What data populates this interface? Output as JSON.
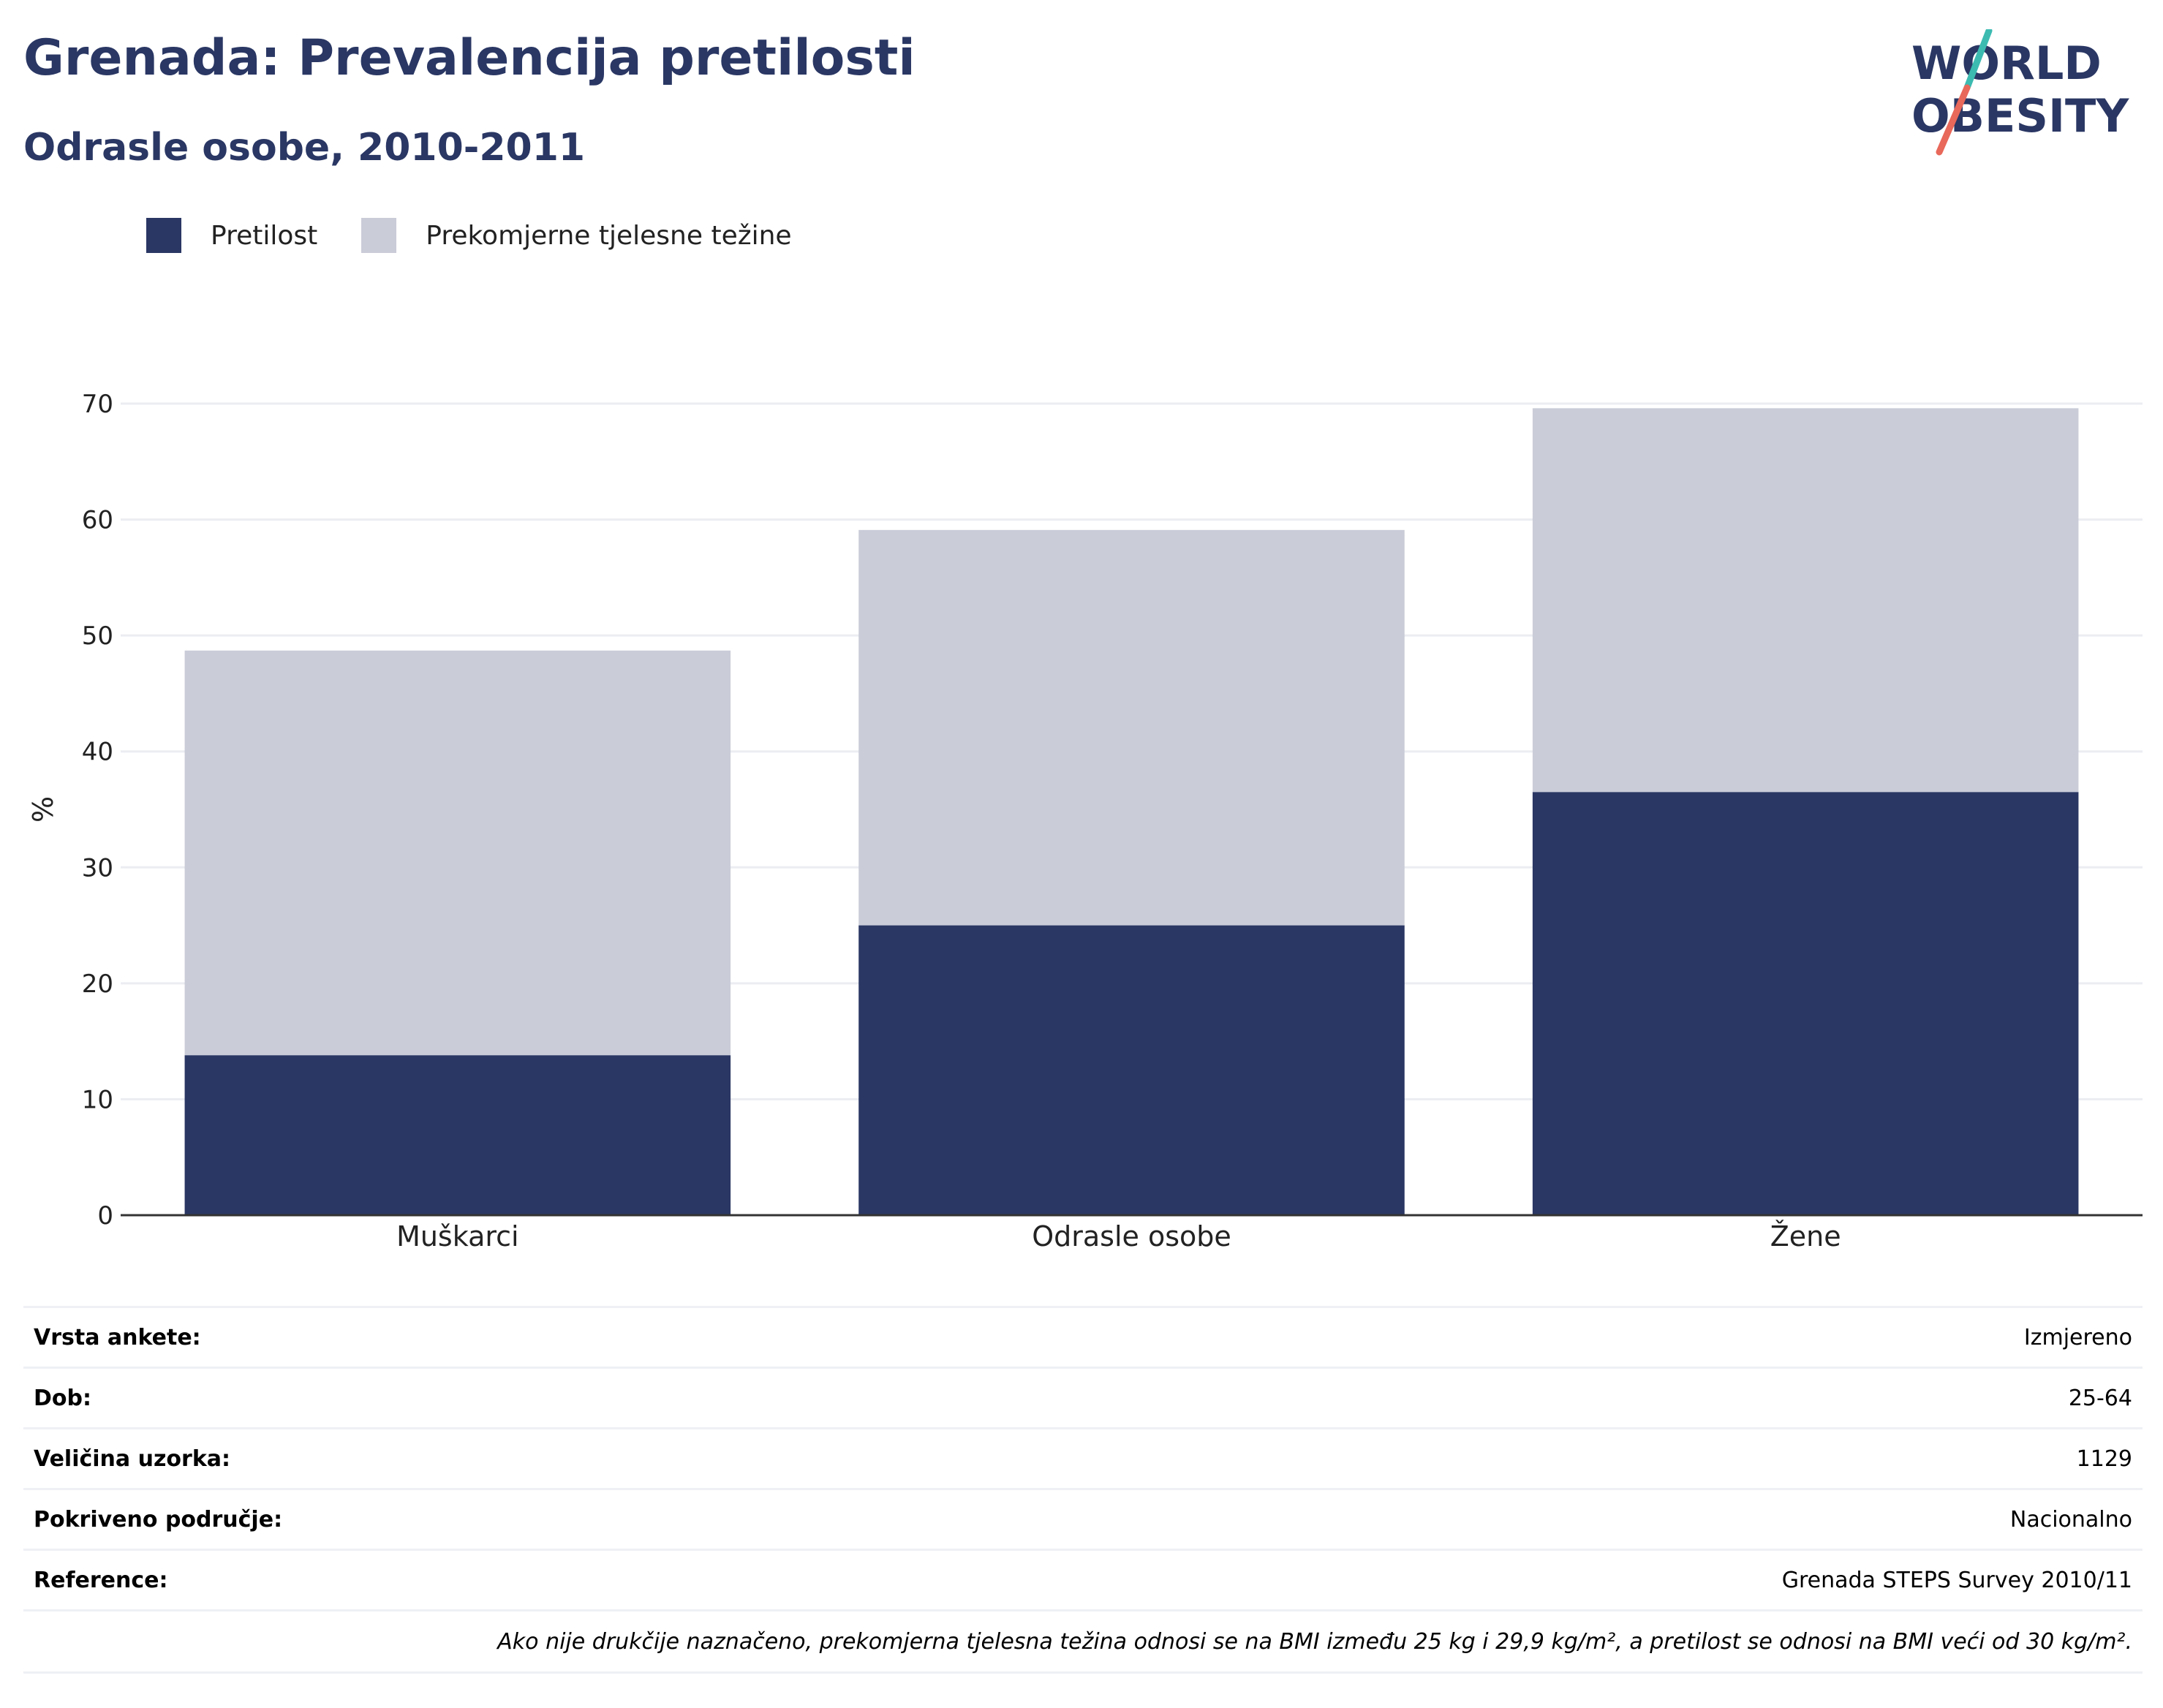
{
  "header": {
    "title": "Grenada: Prevalencija pretilosti",
    "subtitle": "Odrasle osobe, 2010-2011"
  },
  "logo": {
    "line1": "WORLD",
    "line2": "OBESITY",
    "accent_teal": "#3cbbb1",
    "accent_red": "#e8685a",
    "color": "#2a3764"
  },
  "legend": [
    {
      "label": "Pretilost",
      "color": "#2a3764"
    },
    {
      "label": "Prekomjerne tjelesne težine",
      "color": "#caccd8"
    }
  ],
  "chart_data": {
    "type": "bar",
    "stacked": true,
    "categories": [
      "Muškarci",
      "Odrasle osobe",
      "Žene"
    ],
    "series": [
      {
        "name": "Pretilost",
        "values": [
          13.8,
          25.0,
          36.5
        ],
        "color": "#2a3764"
      },
      {
        "name": "Prekomjerne tjelesne težine",
        "values": [
          34.9,
          34.1,
          33.1
        ],
        "color": "#caccd8"
      }
    ],
    "ylabel": "%",
    "ylim": [
      0,
      70
    ],
    "yticks": [
      "0",
      "10",
      "20",
      "30",
      "40",
      "50",
      "60",
      "70"
    ],
    "grid": true,
    "legend_position": "top-left"
  },
  "meta": {
    "rows": [
      {
        "key": "Vrsta ankete:",
        "value": "Izmjereno"
      },
      {
        "key": "Dob:",
        "value": "25-64"
      },
      {
        "key": "Veličina uzorka:",
        "value": "1129"
      },
      {
        "key": "Pokriveno područje:",
        "value": "Nacionalno"
      },
      {
        "key": "Reference:",
        "value": "Grenada STEPS Survey 2010/11"
      }
    ],
    "note": "Ako nije drukčije naznačeno, prekomjerna tjelesna težina odnosi se na BMI između 25 kg i 29,9 kg/m², a pretilost se odnosi na BMI veći od 30 kg/m²."
  }
}
